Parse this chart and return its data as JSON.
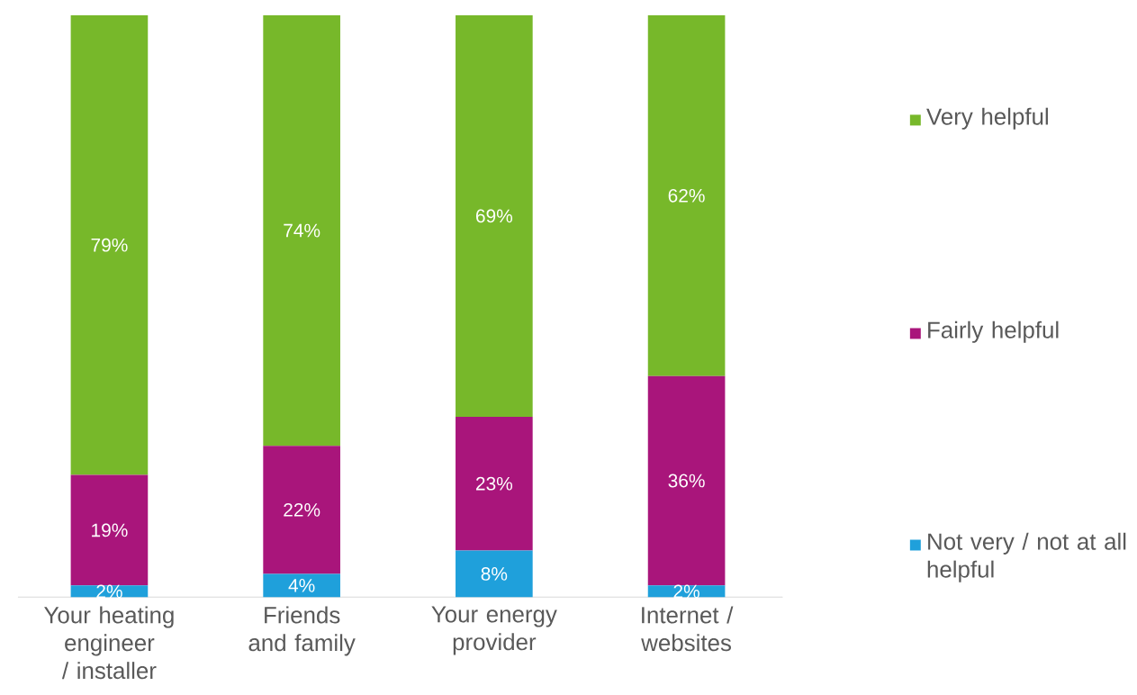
{
  "chart_data": {
    "type": "bar",
    "stacked": true,
    "legend": "right",
    "categories": [
      "Your heating engineer / installer",
      "Friends and family",
      "Your energy provider",
      "Internet / websites"
    ],
    "series": [
      {
        "name": "Not very / not at all helpful",
        "color": "#1fa0db",
        "values": [
          2,
          4,
          8,
          2
        ],
        "value_labels": [
          "2%",
          "4%",
          "8%",
          "2%"
        ]
      },
      {
        "name": "Fairly helpful",
        "color": "#a9157b",
        "values": [
          19,
          22,
          23,
          36
        ],
        "value_labels": [
          "19%",
          "22%",
          "23%",
          "36%"
        ]
      },
      {
        "name": "Very helpful",
        "color": "#77b82a",
        "values": [
          79,
          74,
          69,
          62
        ],
        "value_labels": [
          "79%",
          "74%",
          "69%",
          "62%"
        ]
      }
    ]
  }
}
